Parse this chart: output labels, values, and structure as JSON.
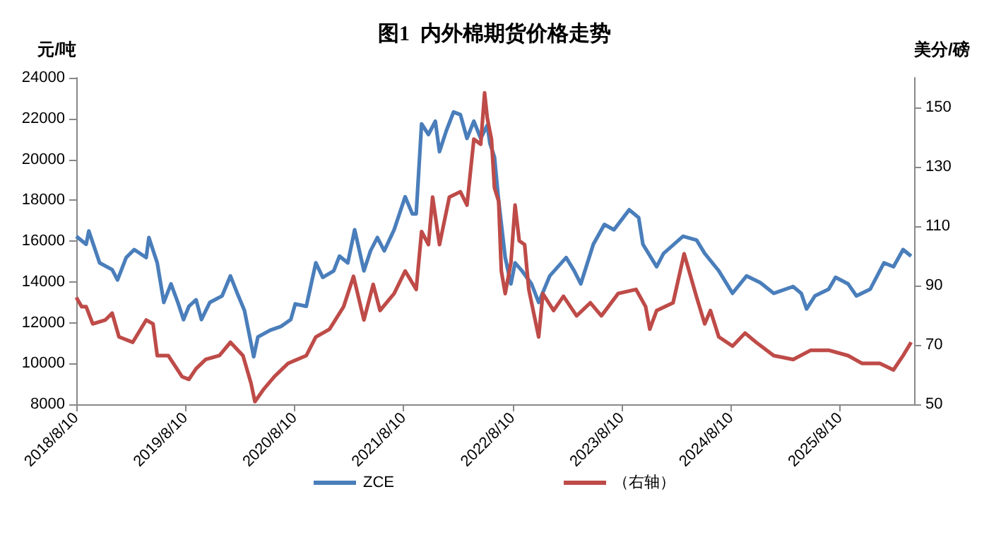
{
  "chart_data": {
    "type": "line",
    "title": "图1  内外棉期货价格走势",
    "ylabel": "元/吨",
    "y2label": "美分/磅",
    "legend": "bottom",
    "grid": false,
    "marker": "none",
    "line_style": "solid",
    "xlim": [
      "2018-08-10",
      "2026-04-15"
    ],
    "xticks": [
      {
        "value": "2018-08-10",
        "label": "2018/8/10"
      },
      {
        "value": "2019-08-10",
        "label": "2019/8/10"
      },
      {
        "value": "2020-08-10",
        "label": "2020/8/10"
      },
      {
        "value": "2021-08-10",
        "label": "2021/8/10"
      },
      {
        "value": "2022-08-10",
        "label": "2022/8/10"
      },
      {
        "value": "2023-08-10",
        "label": "2023/8/10"
      },
      {
        "value": "2024-08-10",
        "label": "2024/8/10"
      },
      {
        "value": "2025-08-10",
        "label": "2025/8/10"
      }
    ],
    "ylim": [
      8000,
      24000
    ],
    "yticks": [
      8000,
      10000,
      12000,
      14000,
      16000,
      18000,
      20000,
      22000,
      24000
    ],
    "y2lim": [
      50,
      160
    ],
    "y2ticks": [
      50,
      70,
      90,
      110,
      130,
      150
    ],
    "series": [
      {
        "name": "ZCE",
        "color": "#4a7ebb",
        "x": [
          "2018-08-10",
          "2018-09-12",
          "2018-09-21",
          "2018-10-27",
          "2018-12-08",
          "2018-12-26",
          "2019-01-24",
          "2019-02-20",
          "2019-04-01",
          "2019-04-10",
          "2019-05-08",
          "2019-05-30",
          "2019-06-23",
          "2019-07-16",
          "2019-08-04",
          "2019-08-22",
          "2019-09-15",
          "2019-10-03",
          "2019-10-31",
          "2019-12-11",
          "2020-01-08",
          "2020-01-31",
          "2020-02-24",
          "2020-03-26",
          "2020-04-09",
          "2020-05-20",
          "2020-06-26",
          "2020-07-28",
          "2020-08-12",
          "2020-09-18",
          "2020-10-20",
          "2020-11-12",
          "2020-12-19",
          "2021-01-07",
          "2021-02-04",
          "2021-02-27",
          "2021-03-30",
          "2021-04-21",
          "2021-05-14",
          "2021-06-06",
          "2021-07-09",
          "2021-08-15",
          "2021-09-08",
          "2021-09-21",
          "2021-10-09",
          "2021-11-01",
          "2021-11-24",
          "2021-12-08",
          "2021-12-31",
          "2022-01-24",
          "2022-02-16",
          "2022-03-10",
          "2022-04-02",
          "2022-04-25",
          "2022-05-17",
          "2022-05-26",
          "2022-06-10",
          "2022-06-24",
          "2022-07-16",
          "2022-08-04",
          "2022-08-18",
          "2022-09-10",
          "2022-10-12",
          "2022-11-05",
          "2022-12-12",
          "2023-02-05",
          "2023-03-04",
          "2023-03-26",
          "2023-05-07",
          "2023-06-13",
          "2023-07-15",
          "2023-09-04",
          "2023-10-06",
          "2023-10-20",
          "2023-12-05",
          "2023-12-28",
          "2024-03-02",
          "2024-04-17",
          "2024-05-14",
          "2024-06-30",
          "2024-08-15",
          "2024-10-01",
          "2024-11-16",
          "2024-12-31",
          "2025-03-06",
          "2025-04-02",
          "2025-04-20",
          "2025-05-18",
          "2025-07-03",
          "2025-07-26",
          "2025-09-06",
          "2025-10-04",
          "2025-11-19",
          "2026-01-04",
          "2026-02-05",
          "2026-03-09",
          "2026-04-05"
        ],
        "values": [
          16230,
          15840,
          16490,
          14930,
          14600,
          14090,
          15190,
          15580,
          15190,
          16170,
          14930,
          12990,
          13900,
          12990,
          12150,
          12800,
          13120,
          12150,
          12990,
          13310,
          14290,
          13440,
          12600,
          10330,
          11300,
          11630,
          11820,
          12150,
          12920,
          12800,
          14930,
          14220,
          14540,
          15260,
          14930,
          16550,
          14540,
          15520,
          16170,
          15520,
          16550,
          18170,
          17330,
          17330,
          21740,
          21220,
          21870,
          20380,
          21410,
          22320,
          22190,
          21030,
          21870,
          21030,
          21670,
          20770,
          20120,
          17980,
          15190,
          13900,
          14930,
          14540,
          13900,
          12990,
          14290,
          15190,
          14540,
          13900,
          15840,
          16810,
          16550,
          17530,
          17140,
          15840,
          14740,
          15390,
          16230,
          16040,
          15390,
          14540,
          13440,
          14290,
          13960,
          13440,
          13770,
          13440,
          12670,
          13310,
          13640,
          14220,
          13900,
          13310,
          13640,
          14930,
          14740,
          15580,
          15260
        ]
      },
      {
        "name": "（右轴）",
        "color": "#be4b48",
        "axis": "y2",
        "x": [
          "2018-08-10",
          "2018-08-28",
          "2018-09-12",
          "2018-10-04",
          "2018-11-15",
          "2018-12-08",
          "2018-12-31",
          "2019-02-15",
          "2019-04-01",
          "2019-04-24",
          "2019-05-08",
          "2019-06-14",
          "2019-07-30",
          "2019-08-22",
          "2019-09-15",
          "2019-10-17",
          "2019-12-02",
          "2020-01-08",
          "2020-02-19",
          "2020-03-17",
          "2020-03-30",
          "2020-04-27",
          "2020-06-03",
          "2020-07-19",
          "2020-09-18",
          "2020-10-20",
          "2020-12-05",
          "2021-01-21",
          "2021-02-23",
          "2021-03-30",
          "2021-04-30",
          "2021-05-23",
          "2021-07-09",
          "2021-08-15",
          "2021-09-21",
          "2021-10-09",
          "2021-11-01",
          "2021-11-15",
          "2021-12-08",
          "2022-01-10",
          "2022-02-16",
          "2022-03-10",
          "2022-04-02",
          "2022-04-25",
          "2022-05-08",
          "2022-05-17",
          "2022-05-31",
          "2022-06-10",
          "2022-06-24",
          "2022-07-03",
          "2022-07-16",
          "2022-08-04",
          "2022-08-18",
          "2022-09-01",
          "2022-09-19",
          "2022-10-03",
          "2022-11-05",
          "2022-11-19",
          "2022-12-25",
          "2023-01-27",
          "2023-03-12",
          "2023-04-27",
          "2023-06-03",
          "2023-07-29",
          "2023-09-27",
          "2023-10-29",
          "2023-11-12",
          "2023-12-05",
          "2024-01-29",
          "2024-03-06",
          "2024-04-17",
          "2024-05-14",
          "2024-06-02",
          "2024-06-30",
          "2024-08-15",
          "2024-09-26",
          "2024-11-02",
          "2024-12-31",
          "2025-03-06",
          "2025-05-04",
          "2025-07-03",
          "2025-09-06",
          "2025-10-22",
          "2025-12-21",
          "2026-02-05",
          "2026-03-09",
          "2026-04-05"
        ],
        "values": [
          86.0,
          82.9,
          82.9,
          77.1,
          78.4,
          80.7,
          72.7,
          70.9,
          78.4,
          77.1,
          66.4,
          66.4,
          59.3,
          58.4,
          62.0,
          65.1,
          66.4,
          70.9,
          66.4,
          57.1,
          50.9,
          54.9,
          59.3,
          63.8,
          66.4,
          72.7,
          75.3,
          82.9,
          93.1,
          78.4,
          90.4,
          81.6,
          87.3,
          94.9,
          88.7,
          108.2,
          103.8,
          119.8,
          103.8,
          119.8,
          121.6,
          117.1,
          139.3,
          137.6,
          154.9,
          146.4,
          139.3,
          122.9,
          118.4,
          94.9,
          87.3,
          97.6,
          117.1,
          105.1,
          103.8,
          88.7,
          72.7,
          87.3,
          81.6,
          86.4,
          79.8,
          84.2,
          79.8,
          87.3,
          88.7,
          82.9,
          75.3,
          81.6,
          84.2,
          100.7,
          86.0,
          77.1,
          81.6,
          72.7,
          69.6,
          74.0,
          70.9,
          66.4,
          65.1,
          68.2,
          68.2,
          66.4,
          63.8,
          63.8,
          61.6,
          66.4,
          70.9
        ]
      }
    ]
  }
}
